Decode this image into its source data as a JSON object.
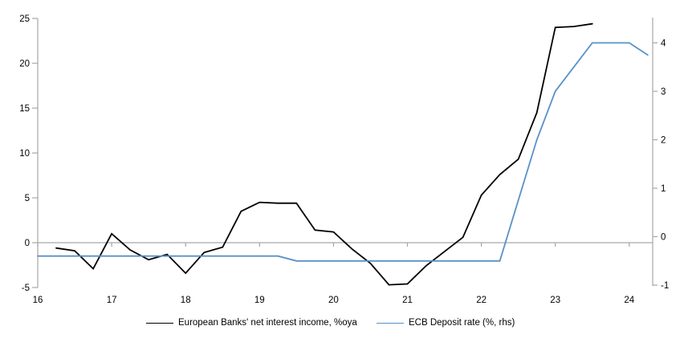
{
  "chart_data": {
    "type": "line",
    "title": "",
    "xlabel": "",
    "ylabel_left": "",
    "ylabel_right": "",
    "grid": "zero-line-only",
    "legend_position": "bottom",
    "x_axis": {
      "tick_values": [
        16,
        17,
        18,
        19,
        20,
        21,
        22,
        23,
        24
      ],
      "tick_labels": [
        "16",
        "17",
        "18",
        "19",
        "20",
        "21",
        "22",
        "23",
        "24"
      ],
      "range": [
        16,
        24.3
      ]
    },
    "left_axis": {
      "tick_values": [
        25,
        20,
        15,
        10,
        5,
        0,
        -5
      ],
      "range": [
        -5,
        25
      ]
    },
    "right_axis": {
      "tick_values": [
        4,
        3,
        2,
        1,
        0,
        -1
      ],
      "range": [
        -1,
        4.5
      ]
    },
    "series": [
      {
        "name": "European Banks' net interest income, %oya",
        "axis": "left",
        "color": "#000000",
        "x": [
          16.25,
          16.5,
          16.75,
          17,
          17.25,
          17.5,
          17.75,
          18,
          18.25,
          18.5,
          18.75,
          19,
          19.25,
          19.5,
          19.75,
          20,
          20.25,
          20.5,
          20.75,
          21,
          21.25,
          21.5,
          21.75,
          22,
          22.25,
          22.5,
          22.75,
          23,
          23.25,
          23.5
        ],
        "y": [
          -0.6,
          -0.9,
          -2.9,
          1.0,
          -0.8,
          -1.9,
          -1.3,
          -3.4,
          -1.1,
          -0.5,
          3.5,
          4.5,
          4.4,
          4.4,
          1.4,
          1.2,
          -0.7,
          -2.3,
          -4.7,
          -4.6,
          -2.6,
          -1.0,
          0.6,
          5.3,
          7.6,
          9.3,
          14.5,
          24.0,
          24.1,
          24.4
        ]
      },
      {
        "name": "ECB Deposit rate (%, rhs)",
        "axis": "right",
        "color": "#5a90c8",
        "x": [
          16,
          16.25,
          16.5,
          16.75,
          17,
          17.25,
          17.5,
          17.75,
          18,
          18.25,
          18.5,
          18.75,
          19,
          19.25,
          19.5,
          19.75,
          20,
          20.25,
          20.5,
          20.75,
          21,
          21.25,
          21.5,
          21.75,
          22,
          22.25,
          22.5,
          22.75,
          23,
          23.25,
          23.5,
          23.75,
          24,
          24.25
        ],
        "y": [
          -0.4,
          -0.4,
          -0.4,
          -0.4,
          -0.4,
          -0.4,
          -0.4,
          -0.4,
          -0.4,
          -0.4,
          -0.4,
          -0.4,
          -0.4,
          -0.4,
          -0.5,
          -0.5,
          -0.5,
          -0.5,
          -0.5,
          -0.5,
          -0.5,
          -0.5,
          -0.5,
          -0.5,
          -0.5,
          -0.5,
          0.75,
          2.0,
          3.0,
          3.5,
          4.0,
          4.0,
          4.0,
          3.75
        ]
      }
    ],
    "style": {
      "axis_color": "#a6a6a6",
      "zero_line_color": "#a6a6a6",
      "text_color": "#000000",
      "background": "#ffffff"
    }
  },
  "legend": {
    "entries": [
      {
        "label": "European Banks' net interest income, %oya"
      },
      {
        "label": "ECB Deposit rate (%, rhs)"
      }
    ]
  }
}
